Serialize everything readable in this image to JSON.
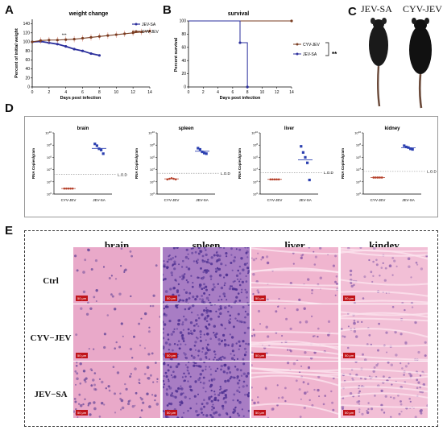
{
  "panel_letters": {
    "A": "A",
    "B": "B",
    "C": "C",
    "D": "D",
    "E": "E"
  },
  "chart_data": [
    {
      "type": "line",
      "panel": "A",
      "title": "weight change",
      "xlabel": "Days post infection",
      "ylabel": "Percent of initial weight",
      "xlim": [
        0,
        14
      ],
      "ylim": [
        0,
        150
      ],
      "xticks": [
        "0",
        "2",
        "4",
        "6",
        "8",
        "10",
        "12",
        "14"
      ],
      "yticks": [
        "0",
        "20",
        "40",
        "60",
        "80",
        "100",
        "120",
        "140"
      ],
      "annotation": "***",
      "series": [
        {
          "name": "JEV-SA",
          "color": "#2b2f9c",
          "x": [
            0,
            1,
            2,
            3,
            4,
            5,
            6,
            7,
            8
          ],
          "y": [
            100,
            101,
            98,
            95,
            90,
            84,
            80,
            74,
            70
          ]
        },
        {
          "name": "CYV-JEV",
          "color": "#7a3d22",
          "x": [
            0,
            1,
            2,
            3,
            4,
            5,
            6,
            7,
            8,
            9,
            10,
            11,
            12,
            13,
            14
          ],
          "y": [
            100,
            103,
            104,
            104,
            105,
            106,
            108,
            110,
            112,
            114,
            116,
            118,
            120,
            122,
            124
          ]
        }
      ]
    },
    {
      "type": "line",
      "panel": "B",
      "title": "survival",
      "xlabel": "Days post infection",
      "ylabel": "Percent survival",
      "xlim": [
        0,
        14
      ],
      "ylim": [
        0,
        100
      ],
      "xticks": [
        "0",
        "2",
        "4",
        "6",
        "8",
        "10",
        "12",
        "14"
      ],
      "yticks": [
        "0",
        "20",
        "40",
        "60",
        "80",
        "100"
      ],
      "significance": "**",
      "series": [
        {
          "name": "CYV-JEV",
          "color": "#7a3d22",
          "x": [
            0,
            14
          ],
          "y": [
            100,
            100
          ]
        },
        {
          "name": "JEV-SA",
          "color": "#2b2f9c",
          "x": [
            0,
            7,
            7,
            8,
            8
          ],
          "y": [
            100,
            100,
            67,
            67,
            0
          ]
        }
      ]
    },
    {
      "type": "scatter",
      "panel": "D",
      "ylabel": "RNA Copies/gram",
      "lod_label": "L.O.D",
      "groups": [
        "CYV-JEV",
        "JEV-SA"
      ],
      "group_colors": [
        "#b5402a",
        "#2b3fb0"
      ],
      "ytick_exponents": [
        0,
        2,
        4,
        6,
        8,
        10
      ],
      "subplots": [
        {
          "title": "brain",
          "lod": 3.2,
          "values": [
            [
              0.9,
              0.9,
              0.9,
              0.9,
              0.9
            ],
            [
              8.2,
              7.9,
              7.4,
              7.2,
              6.6
            ]
          ]
        },
        {
          "title": "spleen",
          "lod": 3.4,
          "values": [
            [
              2.4,
              2.5,
              2.6,
              2.5,
              2.4
            ],
            [
              7.5,
              7.3,
              6.9,
              6.7,
              6.6
            ]
          ]
        },
        {
          "title": "liver",
          "lod": 3.5,
          "values": [
            [
              2.4,
              2.4,
              2.4,
              2.4,
              2.4
            ],
            [
              7.8,
              6.8,
              6.0,
              5.1,
              2.3
            ]
          ]
        },
        {
          "title": "kidney",
          "lod": 3.7,
          "values": [
            [
              2.7,
              2.7,
              2.7,
              2.7,
              2.7
            ],
            [
              7.9,
              7.7,
              7.6,
              7.4,
              7.3
            ]
          ]
        }
      ]
    }
  ],
  "panelC": {
    "left_label": "JEV-SA",
    "right_label": "CYV-JEV"
  },
  "panelE": {
    "columns": [
      "brain",
      "spleen",
      "liver",
      "kindey"
    ],
    "rows": [
      "Ctrl",
      "CYV−JEV",
      "JEV−SA"
    ],
    "scale_text": "50 μm"
  }
}
